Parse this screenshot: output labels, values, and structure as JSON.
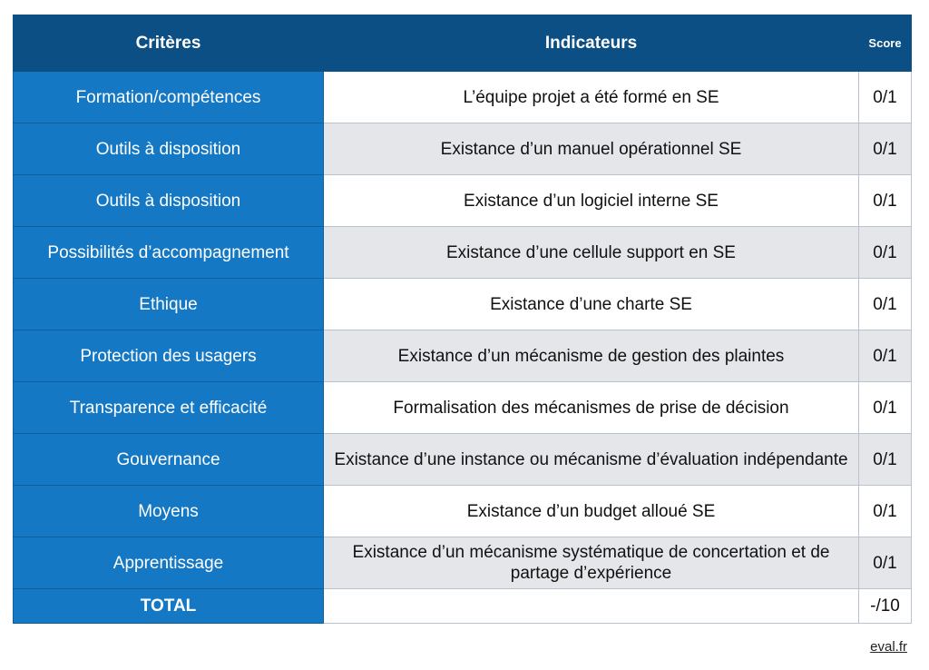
{
  "header": {
    "criteria": "Critères",
    "indicators": "Indicateurs",
    "score": "Score"
  },
  "rows": [
    {
      "criterion": "Formation/compétences",
      "indicator": "L’équipe projet a été formé en SE",
      "score": "0/1"
    },
    {
      "criterion": "Outils à disposition",
      "indicator": "Existance d’un manuel opérationnel SE",
      "score": "0/1"
    },
    {
      "criterion": "Outils à disposition",
      "indicator": "Existance d’un logiciel interne SE",
      "score": "0/1"
    },
    {
      "criterion": "Possibilités d’accompagnement",
      "indicator": "Existance d’une cellule support en SE",
      "score": "0/1"
    },
    {
      "criterion": "Ethique",
      "indicator": "Existance d’une charte SE",
      "score": "0/1"
    },
    {
      "criterion": "Protection des usagers",
      "indicator": "Existance d’un mécanisme de gestion des plaintes",
      "score": "0/1"
    },
    {
      "criterion": "Transparence et efficacité",
      "indicator": "Formalisation des mécanismes de prise de décision",
      "score": "0/1"
    },
    {
      "criterion": "Gouvernance",
      "indicator": "Existance d’une instance ou mécanisme d’évaluation indépendante",
      "score": "0/1"
    },
    {
      "criterion": "Moyens",
      "indicator": "Existance d’un budget alloué SE",
      "score": "0/1"
    },
    {
      "criterion": "Apprentissage",
      "indicator": "Existance d’un mécanisme systématique de concertation et de partage d’expérience",
      "score": "0/1"
    }
  ],
  "total": {
    "label": "TOTAL",
    "indicator": "",
    "score": "-/10"
  },
  "source": "eval.fr",
  "colors": {
    "header_bg": "#0b4f85",
    "criteria_bg": "#1478c4",
    "alt_row_bg": "#e4e6ea"
  }
}
